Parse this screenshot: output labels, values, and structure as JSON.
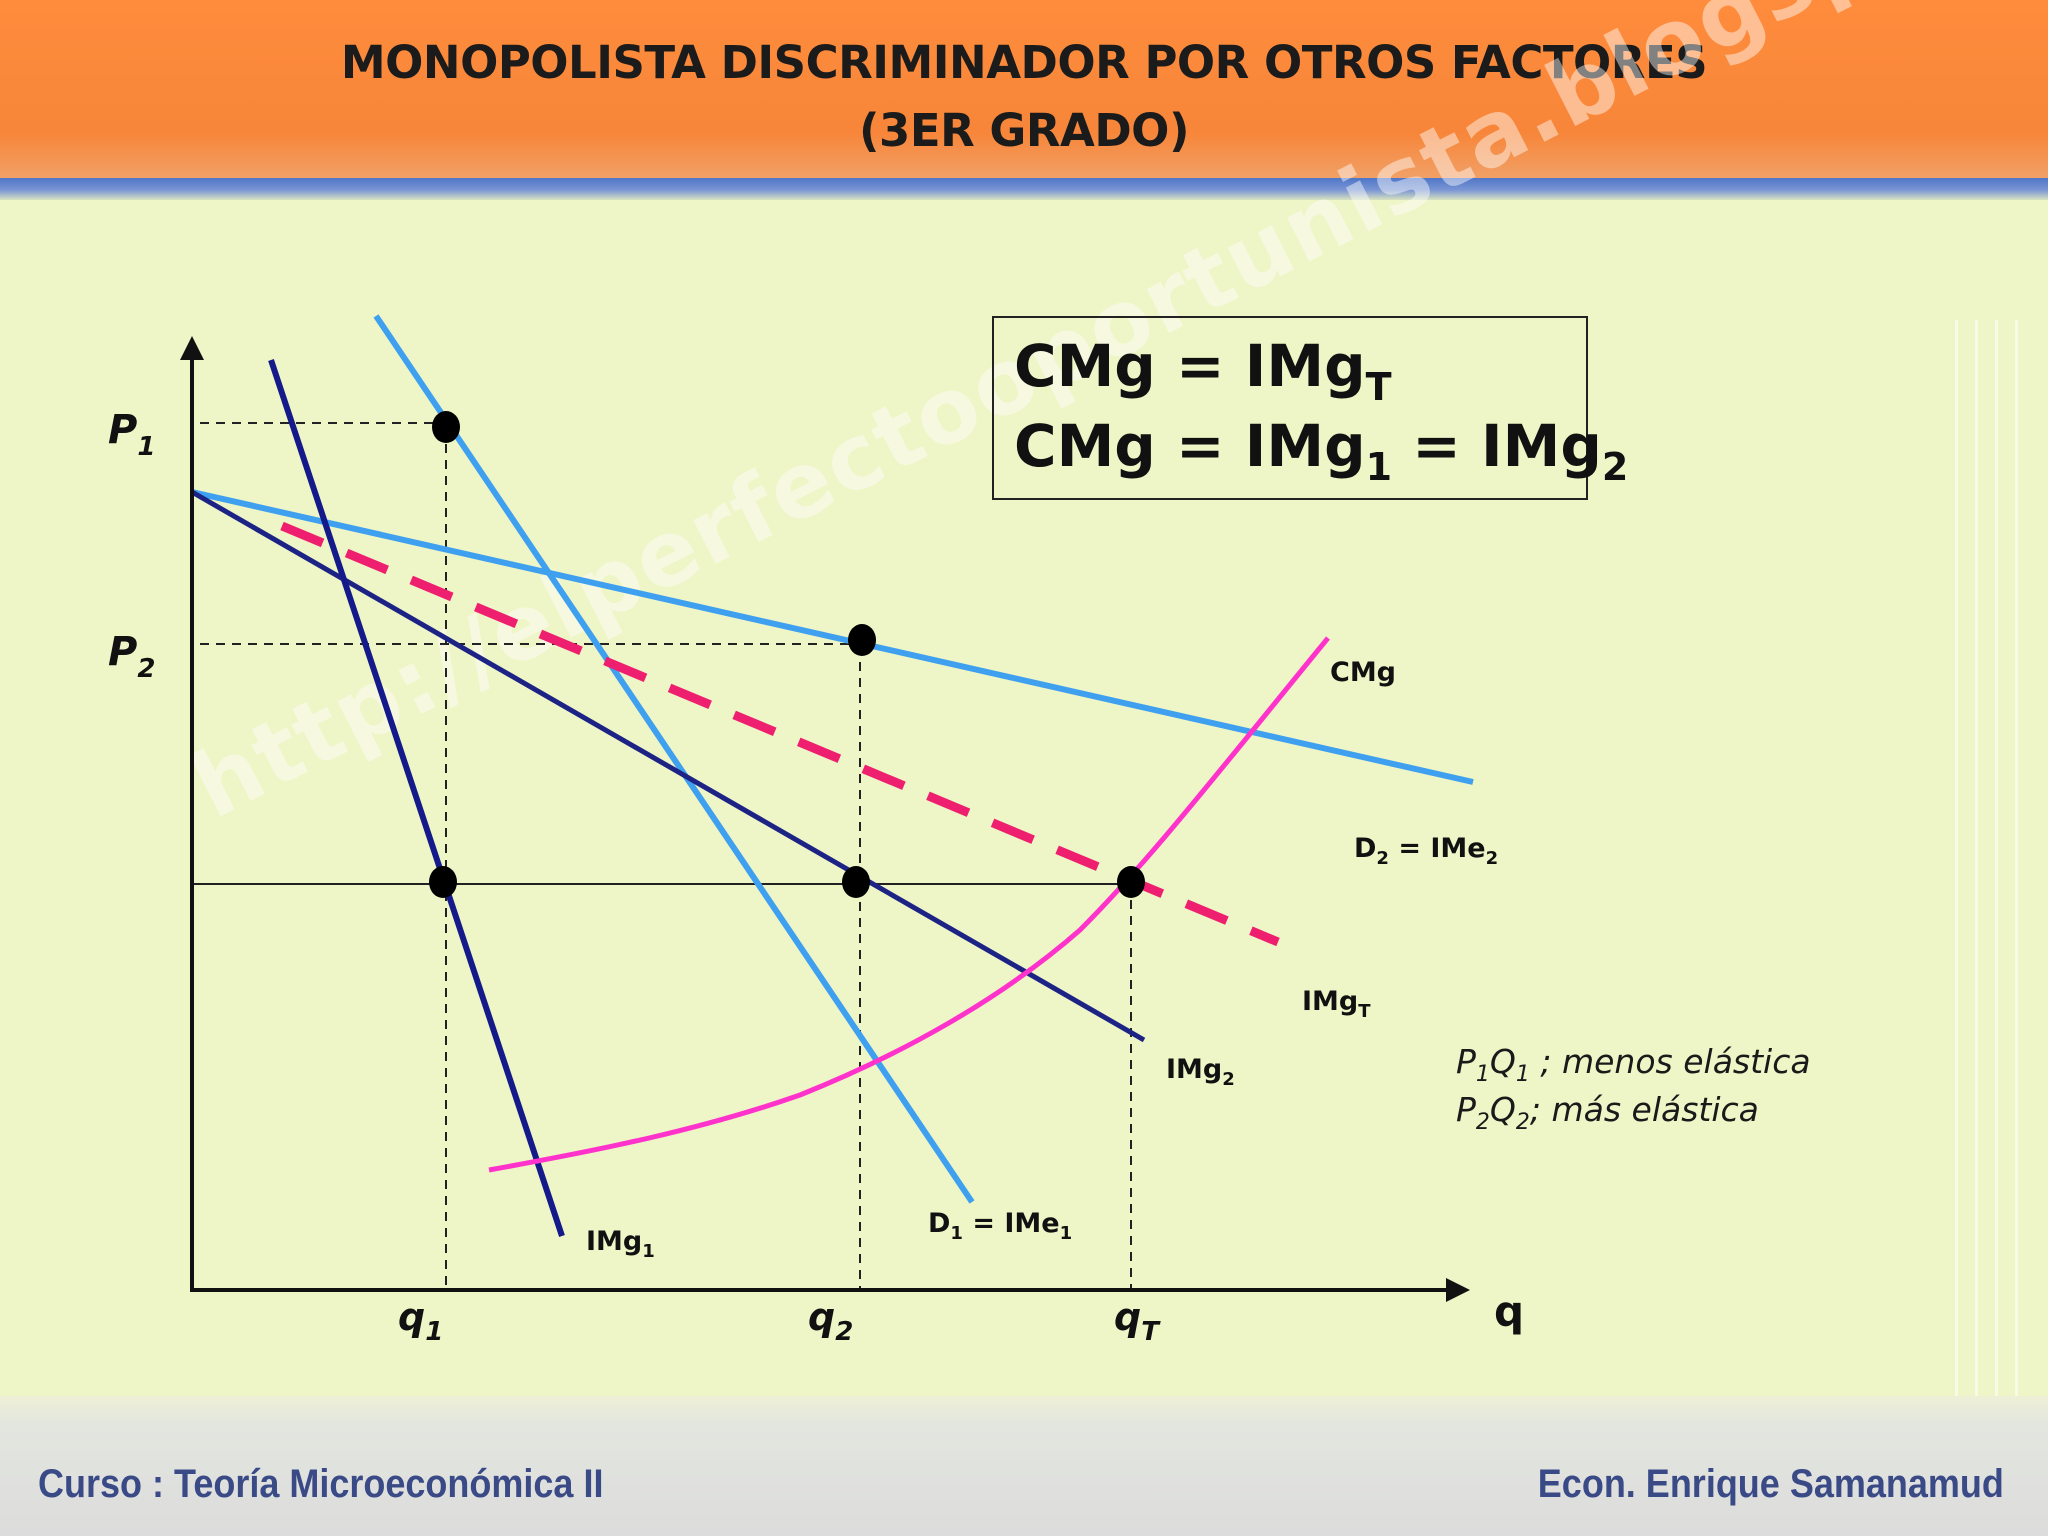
{
  "header": {
    "title_line1": "MONOPOLISTA DISCRIMINADOR POR OTROS FACTORES",
    "title_line2": "(3ER GRADO)"
  },
  "equations": {
    "line1": {
      "lhs": "CMg = IMg",
      "sub": "T"
    },
    "line2": {
      "p1": "CMg = IMg",
      "s1": "1",
      "p2": " = IMg",
      "s2": "2"
    }
  },
  "axes": {
    "x_label": "q",
    "y_ticks": [
      {
        "main": "P",
        "sub": "1"
      },
      {
        "main": "P",
        "sub": "2"
      }
    ],
    "x_ticks": [
      {
        "main": "q",
        "sub": "1"
      },
      {
        "main": "q",
        "sub": "2"
      },
      {
        "main": "q",
        "sub": "T"
      }
    ]
  },
  "curves": {
    "cmg": {
      "label": "CMg",
      "color": "#ff33cc"
    },
    "d2": {
      "label": "D",
      "sub1": "2",
      "mid": " = IMe",
      "sub2": "2",
      "color": "#3fa0f0"
    },
    "d1": {
      "label": "D",
      "sub1": "1",
      "mid": " = IMe",
      "sub2": "1",
      "color": "#3fa0f0"
    },
    "img_t": {
      "label": "IMg",
      "sub": "T",
      "color": "#ee1f6f"
    },
    "img_2": {
      "label": "IMg",
      "sub": "2",
      "color": "#1d2385"
    },
    "img_1": {
      "label": "IMg",
      "sub": "1",
      "color": "#141a8a"
    }
  },
  "note": {
    "line1": {
      "a": "P",
      "s1": "1",
      "b": "Q",
      "s2": "1",
      "rest": " ; menos elástica"
    },
    "line2": {
      "a": "P",
      "s1": "2",
      "b": "Q",
      "s2": "2",
      "rest": "; más elástica"
    }
  },
  "watermark": "http://elperfectooportunista.blogspot.com/",
  "footer": {
    "left": "Curso : Teoría Microeconómica II",
    "right": "Econ. Enrique Samanamud"
  }
}
